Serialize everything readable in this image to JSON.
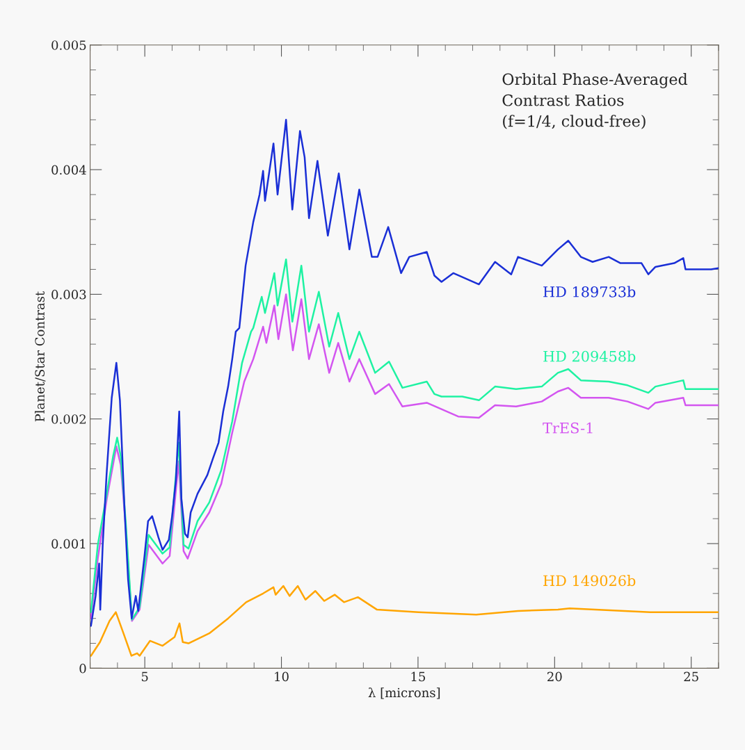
{
  "chart_data": {
    "type": "line",
    "title": "Orbital Phase-Averaged\nContrast Ratios\n(f=1/4, cloud-free)",
    "xlabel": "λ [microns]",
    "ylabel": "Planet/Star Contrast",
    "xlim": [
      3,
      26
    ],
    "xticks": [
      5,
      10,
      15,
      20,
      25
    ],
    "ylim": [
      0,
      0.005
    ],
    "yticks": [
      0,
      0.001,
      0.002,
      0.003,
      0.004,
      0.005
    ],
    "grid": false,
    "legend": false,
    "series": [
      {
        "name": "HD 189733b",
        "color": "#1a2fd6",
        "x": [
          3.03,
          3.2,
          3.33,
          3.37,
          3.46,
          3.6,
          3.79,
          3.96,
          4.09,
          4.26,
          4.39,
          4.52,
          4.67,
          4.76,
          4.99,
          5.12,
          5.27,
          5.5,
          5.65,
          5.88,
          6.0,
          6.14,
          6.26,
          6.34,
          6.47,
          6.57,
          6.68,
          6.93,
          7.29,
          7.49,
          7.7,
          7.87,
          8.05,
          8.2,
          8.33,
          8.46,
          8.69,
          8.97,
          9.2,
          9.33,
          9.4,
          9.71,
          9.86,
          10.17,
          10.4,
          10.68,
          10.85,
          11.01,
          11.32,
          11.7,
          12.1,
          12.49,
          12.85,
          13.31,
          13.52,
          13.91,
          14.38,
          14.68,
          15.32,
          15.6,
          15.86,
          16.29,
          17.23,
          17.82,
          18.41,
          18.66,
          19.53,
          20.12,
          20.5,
          20.96,
          21.39,
          21.98,
          22.41,
          23.18,
          23.43,
          23.69,
          24.38,
          24.71,
          24.79,
          25.73,
          26.0
        ],
        "values": [
          0.00034,
          0.00058,
          0.00084,
          0.00047,
          0.00099,
          0.00155,
          0.00217,
          0.00245,
          0.00215,
          0.00127,
          0.00071,
          0.0004,
          0.00058,
          0.00046,
          0.0009,
          0.00118,
          0.00122,
          0.00105,
          0.00095,
          0.00103,
          0.00122,
          0.00151,
          0.00206,
          0.00136,
          0.00108,
          0.00105,
          0.00125,
          0.0014,
          0.00155,
          0.00168,
          0.00181,
          0.00206,
          0.00226,
          0.00248,
          0.0027,
          0.00273,
          0.00323,
          0.00358,
          0.0038,
          0.00399,
          0.00375,
          0.00421,
          0.0038,
          0.0044,
          0.00368,
          0.00431,
          0.0041,
          0.00361,
          0.00407,
          0.00347,
          0.00397,
          0.00336,
          0.00384,
          0.0033,
          0.0033,
          0.00354,
          0.00317,
          0.0033,
          0.00334,
          0.00315,
          0.0031,
          0.00317,
          0.00308,
          0.00326,
          0.00316,
          0.0033,
          0.00323,
          0.00336,
          0.00343,
          0.0033,
          0.00326,
          0.0033,
          0.00325,
          0.00325,
          0.00316,
          0.00322,
          0.00325,
          0.00329,
          0.0032,
          0.0032,
          0.00321
        ]
      },
      {
        "name": "HD 209458b",
        "color": "#1ef2a2",
        "x": [
          3.03,
          3.28,
          3.61,
          3.84,
          3.99,
          4.12,
          4.3,
          4.53,
          4.81,
          5.14,
          5.65,
          5.91,
          6.24,
          6.42,
          6.6,
          6.93,
          7.36,
          7.8,
          8.2,
          8.56,
          8.89,
          8.97,
          9.28,
          9.4,
          9.74,
          9.86,
          10.17,
          10.4,
          10.73,
          11.01,
          11.37,
          11.75,
          12.08,
          12.49,
          12.85,
          13.43,
          13.94,
          14.43,
          15.32,
          15.6,
          15.86,
          16.62,
          17.23,
          17.82,
          18.59,
          19.53,
          20.12,
          20.5,
          20.96,
          21.98,
          22.67,
          23.43,
          23.69,
          24.71,
          24.79,
          26.0
        ],
        "values": [
          0.00045,
          0.00099,
          0.0014,
          0.0017,
          0.00185,
          0.0017,
          0.00118,
          0.00039,
          0.00049,
          0.00107,
          0.00092,
          0.00097,
          0.00181,
          0.00099,
          0.00096,
          0.00118,
          0.00133,
          0.00159,
          0.00198,
          0.00245,
          0.0027,
          0.00273,
          0.00298,
          0.00285,
          0.00317,
          0.00291,
          0.00328,
          0.00278,
          0.00323,
          0.0027,
          0.00302,
          0.00258,
          0.00285,
          0.00248,
          0.0027,
          0.00237,
          0.00246,
          0.00225,
          0.0023,
          0.0022,
          0.00218,
          0.00218,
          0.00215,
          0.00226,
          0.00224,
          0.00226,
          0.00237,
          0.0024,
          0.00231,
          0.0023,
          0.00227,
          0.00221,
          0.00226,
          0.00231,
          0.00224,
          0.00224
        ]
      },
      {
        "name": "TrES-1",
        "color": "#d355f0",
        "x": [
          3.03,
          3.28,
          3.61,
          3.96,
          4.12,
          4.3,
          4.53,
          4.81,
          5.14,
          5.65,
          5.91,
          6.24,
          6.42,
          6.57,
          6.93,
          7.36,
          7.8,
          8.2,
          8.64,
          8.97,
          9.33,
          9.45,
          9.74,
          9.89,
          10.17,
          10.42,
          10.73,
          11.01,
          11.37,
          11.75,
          12.08,
          12.49,
          12.85,
          13.43,
          13.94,
          14.43,
          15.32,
          16.47,
          17.23,
          17.82,
          18.59,
          19.53,
          20.12,
          20.5,
          20.96,
          21.98,
          22.67,
          23.43,
          23.69,
          24.71,
          24.79,
          26.0
        ],
        "values": [
          0.0004,
          0.00088,
          0.00136,
          0.00178,
          0.00163,
          0.00114,
          0.00038,
          0.00047,
          0.00099,
          0.00084,
          0.0009,
          0.00166,
          0.00094,
          0.00088,
          0.0011,
          0.00125,
          0.00148,
          0.00189,
          0.0023,
          0.00248,
          0.00274,
          0.00261,
          0.00291,
          0.00264,
          0.003,
          0.00255,
          0.00296,
          0.00248,
          0.00276,
          0.00237,
          0.00261,
          0.0023,
          0.00248,
          0.0022,
          0.00228,
          0.0021,
          0.00213,
          0.00202,
          0.00201,
          0.00211,
          0.0021,
          0.00214,
          0.00222,
          0.00225,
          0.00217,
          0.00217,
          0.00214,
          0.00208,
          0.00213,
          0.00217,
          0.00211,
          0.00211
        ]
      },
      {
        "name": "HD 149026b",
        "color": "#ffa500",
        "x": [
          3.03,
          3.36,
          3.71,
          3.94,
          4.22,
          4.51,
          4.72,
          4.81,
          5.19,
          5.65,
          6.09,
          6.27,
          6.39,
          6.6,
          7.36,
          8.05,
          8.71,
          9.33,
          9.71,
          9.79,
          10.07,
          10.3,
          10.6,
          10.88,
          11.24,
          11.57,
          11.95,
          12.29,
          12.8,
          13.5,
          15.02,
          17.13,
          18.66,
          20.12,
          20.55,
          23.5,
          26.0
        ],
        "values": [
          0.0001,
          0.00021,
          0.00038,
          0.00045,
          0.00028,
          0.0001,
          0.00012,
          0.0001,
          0.00022,
          0.00018,
          0.00025,
          0.00036,
          0.00021,
          0.0002,
          0.00028,
          0.0004,
          0.00053,
          0.0006,
          0.00065,
          0.00059,
          0.00066,
          0.00058,
          0.00066,
          0.00055,
          0.00062,
          0.00054,
          0.00059,
          0.00053,
          0.00057,
          0.00047,
          0.00045,
          0.00043,
          0.00046,
          0.00047,
          0.00048,
          0.00045,
          0.00045
        ]
      }
    ]
  }
}
